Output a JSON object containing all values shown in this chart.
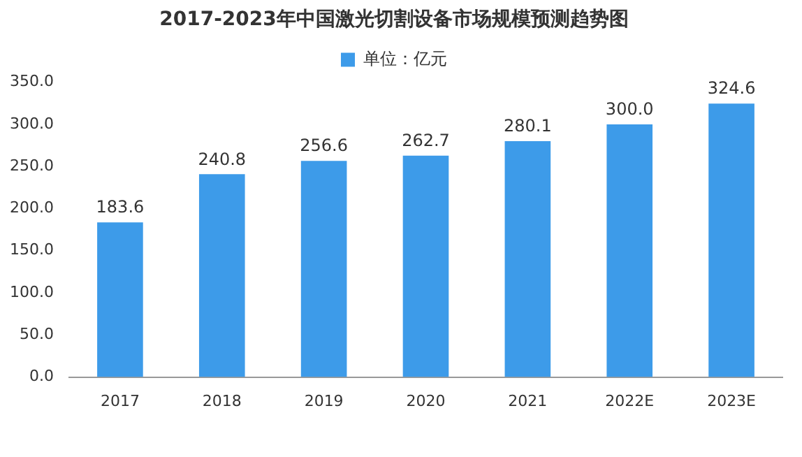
{
  "chart_data": {
    "type": "bar",
    "title": "2017-2023年中国激光切割设备市场规模预测趋势图",
    "categories": [
      "2017",
      "2018",
      "2019",
      "2020",
      "2021",
      "2022E",
      "2023E"
    ],
    "series": [
      {
        "name": "单位：亿元",
        "color": "#3d9be9",
        "values": [
          183.6,
          240.8,
          256.6,
          262.7,
          280.1,
          300.0,
          324.6
        ],
        "value_labels": [
          "183.6",
          "240.8",
          "256.6",
          "262.7",
          "280.1",
          "300.0",
          "324.6"
        ]
      }
    ],
    "ylim": [
      0,
      350
    ],
    "yticks": [
      {
        "value": 0,
        "label": "0.0"
      },
      {
        "value": 50,
        "label": "50.0"
      },
      {
        "value": 100,
        "label": "100.0"
      },
      {
        "value": 150,
        "label": "150.0"
      },
      {
        "value": 200,
        "label": "200.0"
      },
      {
        "value": 250,
        "label": "250.0"
      },
      {
        "value": 300,
        "label": "300.0"
      },
      {
        "value": 350,
        "label": "350.0"
      }
    ],
    "grid": false,
    "legend": "top"
  }
}
